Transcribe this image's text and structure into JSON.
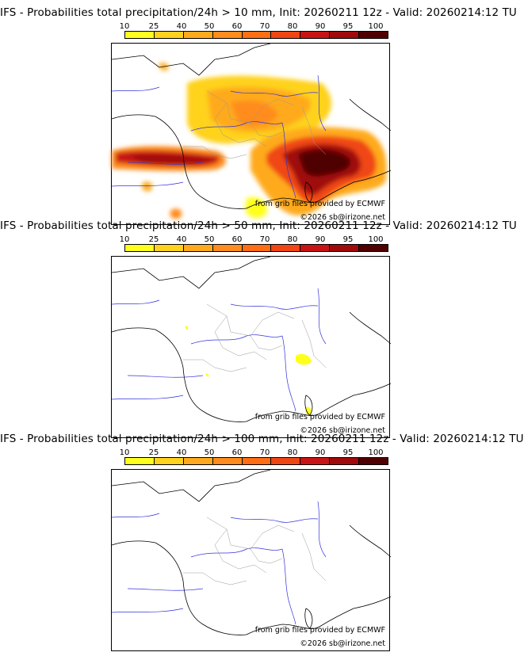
{
  "colors": {
    "bins": [
      "#ffff1e",
      "#ffd21e",
      "#ffaa1e",
      "#ff8c1e",
      "#ff6e14",
      "#f04614",
      "#c81414",
      "#a00a0a",
      "#780505",
      "#500000"
    ],
    "coast": "#000000",
    "rivers": "#3333dd",
    "borders": "#aaaaaa"
  },
  "colorbar": {
    "ticks": [
      "10",
      "25",
      "40",
      "50",
      "60",
      "70",
      "80",
      "90",
      "95",
      "100"
    ]
  },
  "panels": [
    {
      "title": "IFS - Probabilities total precipitation/24h > 10 mm, Init: 20260211 12z - Valid: 20260214:12 TU",
      "threshold_mm": 10,
      "credit_source": "from grib files provided by ECMWF",
      "credit_copyright": "©2026 sb@irizone.net"
    },
    {
      "title": "IFS - Probabilities total precipitation/24h > 50 mm, Init: 20260211 12z - Valid: 20260214:12 TU",
      "threshold_mm": 50,
      "credit_source": "from grib files provided by ECMWF",
      "credit_copyright": "©2026 sb@irizone.net"
    },
    {
      "title": "IFS - Probabilities total precipitation/24h > 100 mm, Init: 20260211 12z - Valid: 20260214:12 TU",
      "threshold_mm": 100,
      "credit_source": "from grib files provided by ECMWF",
      "credit_copyright": "©2026 sb@irizone.net"
    }
  ]
}
